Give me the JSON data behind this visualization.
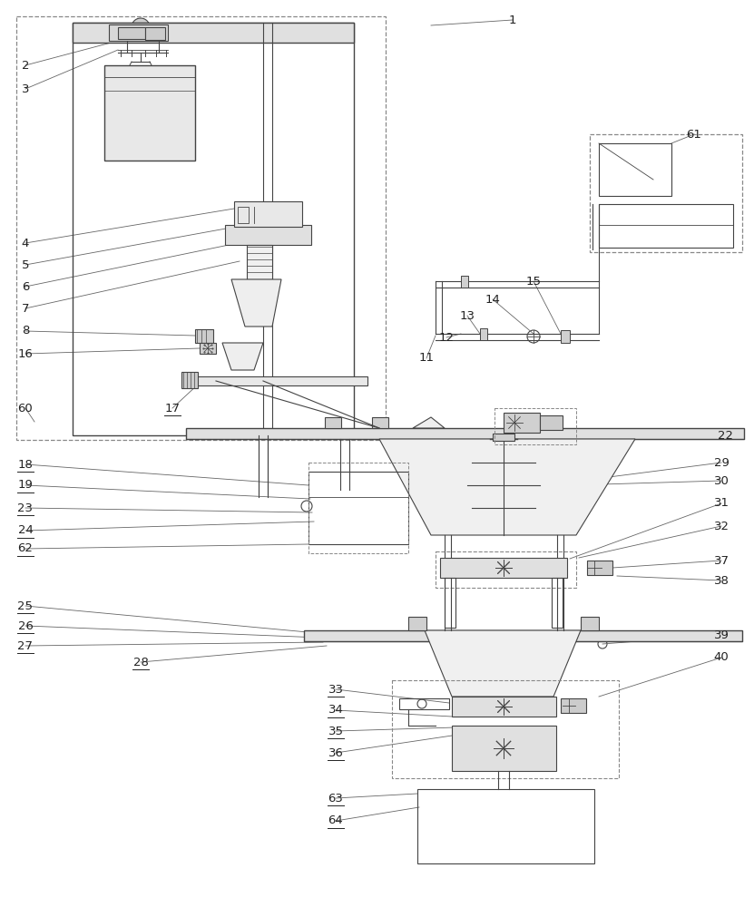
{
  "bg_color": "#ffffff",
  "line_color": "#444444",
  "line_color2": "#666666",
  "fig_width": 8.31,
  "fig_height": 10.0,
  "dpi": 100
}
